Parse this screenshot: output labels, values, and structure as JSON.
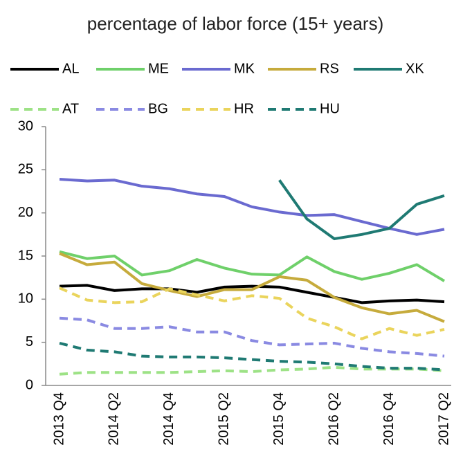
{
  "chart_data": {
    "type": "line",
    "title": "percentage of labor force  (15+ years)",
    "categories": [
      "2013 Q4",
      null,
      "2014 Q2",
      null,
      "2014 Q4",
      null,
      "2015 Q2",
      null,
      "2015 Q4",
      null,
      "2016 Q2",
      null,
      "2016 Q4",
      null,
      "2017 Q2"
    ],
    "ylim": [
      0,
      30
    ],
    "yticks": [
      0,
      5,
      10,
      15,
      20,
      25,
      30
    ],
    "grid": false,
    "series": [
      {
        "name": "AL",
        "color": "#000000",
        "style": "solid",
        "values": [
          11.5,
          11.6,
          11.0,
          11.2,
          11.2,
          10.8,
          11.4,
          11.5,
          11.4,
          10.8,
          10.2,
          9.6,
          9.8,
          9.9,
          9.7
        ]
      },
      {
        "name": "ME",
        "color": "#6fd06a",
        "style": "solid",
        "values": [
          15.5,
          14.7,
          15.0,
          12.8,
          13.3,
          14.6,
          13.6,
          12.9,
          12.8,
          14.9,
          13.2,
          12.3,
          13.0,
          14.0,
          12.1
        ]
      },
      {
        "name": "MK",
        "color": "#6a6ad0",
        "style": "solid",
        "values": [
          23.9,
          23.7,
          23.8,
          23.1,
          22.8,
          22.2,
          21.9,
          20.7,
          20.1,
          19.7,
          19.8,
          19.0,
          18.2,
          17.5,
          18.1
        ]
      },
      {
        "name": "RS",
        "color": "#c6ab3c",
        "style": "solid",
        "values": [
          15.3,
          14.0,
          14.3,
          11.8,
          11.0,
          10.3,
          11.1,
          11.1,
          12.6,
          12.2,
          10.2,
          9.0,
          8.3,
          8.7,
          7.4
        ]
      },
      {
        "name": "XK",
        "color": "#1f7a73",
        "style": "solid",
        "values": [
          null,
          null,
          null,
          null,
          null,
          null,
          null,
          null,
          23.8,
          19.3,
          17.0,
          17.5,
          18.2,
          21.0,
          22.0
        ]
      },
      {
        "name": "AT",
        "color": "#9de286",
        "style": "dashed",
        "values": [
          1.3,
          1.5,
          1.5,
          1.5,
          1.5,
          1.6,
          1.7,
          1.6,
          1.8,
          1.9,
          2.1,
          1.9,
          1.9,
          1.9,
          1.7
        ]
      },
      {
        "name": "BG",
        "color": "#8a8ae2",
        "style": "dashed",
        "values": [
          7.8,
          7.6,
          6.6,
          6.6,
          6.8,
          6.2,
          6.2,
          5.2,
          4.7,
          4.8,
          4.9,
          4.3,
          3.9,
          3.7,
          3.4
        ]
      },
      {
        "name": "HR",
        "color": "#ead45c",
        "style": "dashed",
        "values": [
          11.3,
          9.9,
          9.6,
          9.7,
          11.2,
          10.5,
          9.8,
          10.4,
          10.1,
          7.8,
          6.8,
          5.4,
          6.6,
          5.8,
          6.5
        ]
      },
      {
        "name": "HU",
        "color": "#1f7a73",
        "style": "dashed",
        "values": [
          4.9,
          4.1,
          3.9,
          3.4,
          3.3,
          3.3,
          3.2,
          3.0,
          2.8,
          2.7,
          2.5,
          2.2,
          2.0,
          2.0,
          1.8
        ]
      }
    ]
  }
}
